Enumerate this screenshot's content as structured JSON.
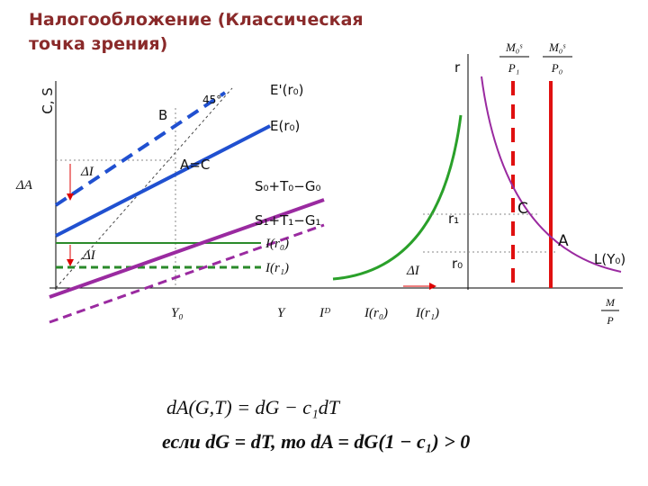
{
  "header": {
    "title_lines": [
      "Налогообложение (Классическая",
      "точка зрения)"
    ]
  },
  "left_panel": {
    "y_axis_label": "C, S",
    "delta_a": "ΔA",
    "delta_i_top": "ΔI",
    "delta_i_bottom": "ΔI",
    "b_label": "B",
    "angle_label": "45°",
    "e_prime": "E'(r₀)",
    "e": "E(r₀)",
    "ac_label": "A=C",
    "s0": "S₀+T₀−G₀",
    "s1": "S₁+T₁−G₁",
    "i_r0": "I(r₀)",
    "i_r1": "I(r₁)",
    "y0": "Y₀",
    "y": "Y"
  },
  "middle_panel": {
    "demand_label": "Iᴰ",
    "i_r0": "I(r₀)",
    "i_r1": "I(r₁)",
    "delta_i": "ΔI"
  },
  "right_panel": {
    "r_label": "r",
    "r1": "r₁",
    "r0": "r₀",
    "c_label": "C",
    "a_label": "A",
    "l_label": "L(Y₀)",
    "supply1": {
      "num": "M₀ˢ",
      "den": "P₁"
    },
    "supply0": {
      "num": "M₀ˢ",
      "den": "P₀"
    },
    "x_axis": {
      "num": "M",
      "den": "P"
    }
  },
  "formulas": [
    "dA(G,T) = dG − c₁dT",
    "если dG = dT, то dA = dG(1 − c₁) > 0"
  ]
}
